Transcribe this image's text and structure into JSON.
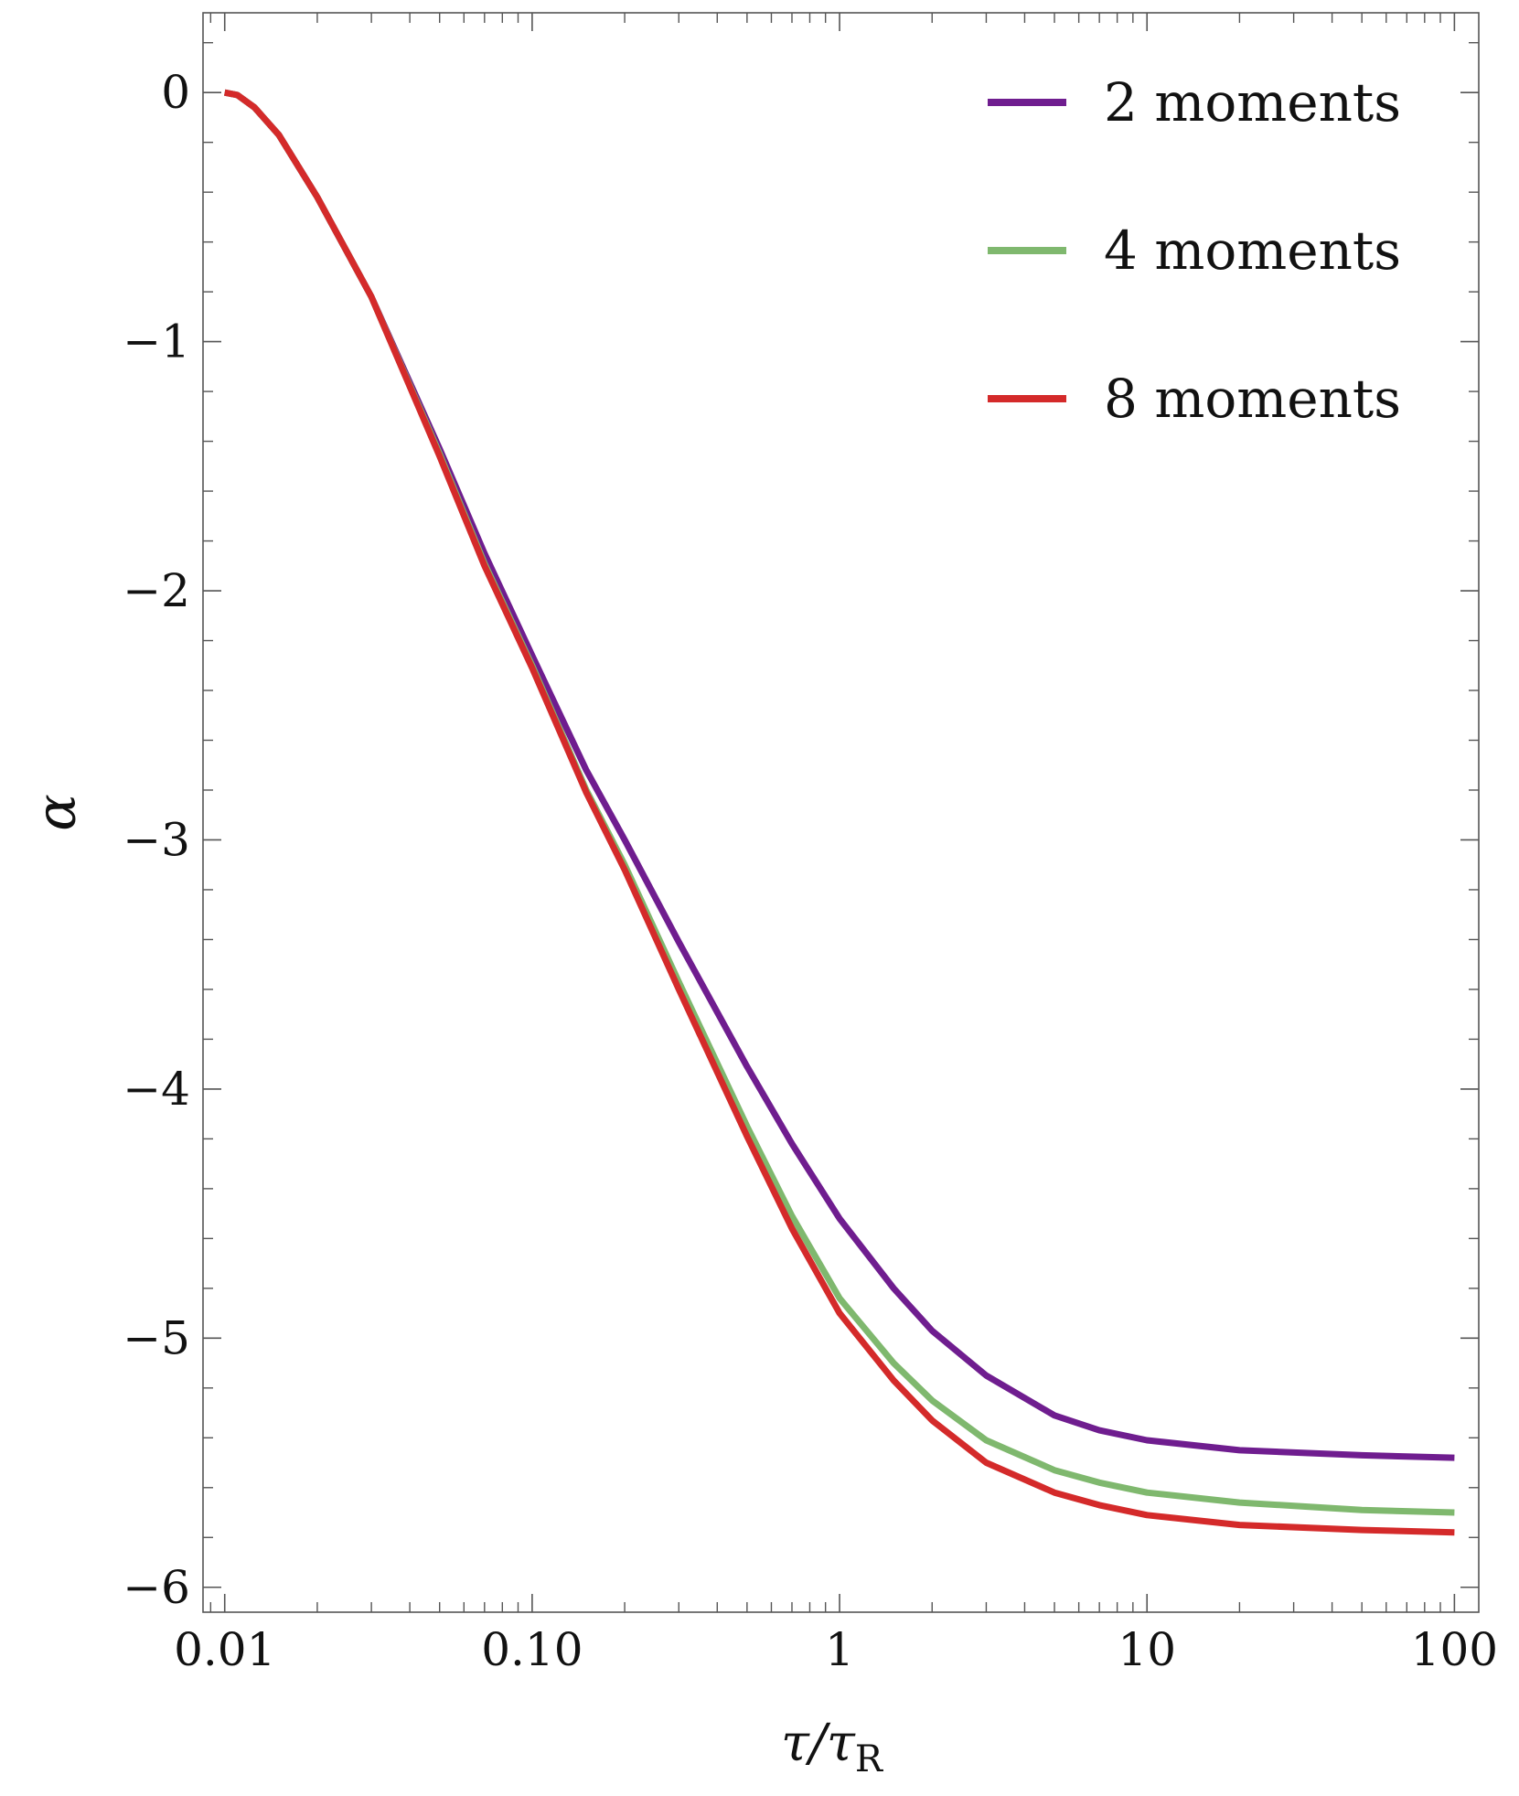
{
  "chart_data": {
    "type": "line",
    "xlabel": "τ/τ",
    "xlabel_sub": "R",
    "ylabel": "α",
    "x_scale": "log",
    "xlim": [
      0.0085,
      120
    ],
    "ylim": [
      -6.1,
      0.32
    ],
    "x_ticks": [
      {
        "value": 0.01,
        "label": "0.01"
      },
      {
        "value": 0.1,
        "label": "0.10"
      },
      {
        "value": 1,
        "label": "1"
      },
      {
        "value": 10,
        "label": "10"
      },
      {
        "value": 100,
        "label": "100"
      }
    ],
    "y_ticks": [
      {
        "value": 0,
        "label": "0"
      },
      {
        "value": -1,
        "label": "−1"
      },
      {
        "value": -2,
        "label": "−2"
      },
      {
        "value": -3,
        "label": "−3"
      },
      {
        "value": -4,
        "label": "−4"
      },
      {
        "value": -5,
        "label": "−5"
      },
      {
        "value": -6,
        "label": "−6"
      }
    ],
    "grid": false,
    "legend_position": "top-right",
    "series": [
      {
        "name": "2 moments",
        "color": "#6f1d8f",
        "x": [
          0.01,
          0.011,
          0.0125,
          0.015,
          0.02,
          0.03,
          0.05,
          0.07,
          0.1,
          0.15,
          0.2,
          0.3,
          0.5,
          0.7,
          1,
          1.5,
          2,
          3,
          5,
          7,
          10,
          20,
          50,
          100
        ],
        "y": [
          0,
          -0.01,
          -0.06,
          -0.17,
          -0.42,
          -0.82,
          -1.43,
          -1.85,
          -2.26,
          -2.72,
          -3.0,
          -3.41,
          -3.91,
          -4.22,
          -4.52,
          -4.8,
          -4.97,
          -5.15,
          -5.31,
          -5.37,
          -5.41,
          -5.45,
          -5.47,
          -5.48
        ]
      },
      {
        "name": "4 moments",
        "color": "#7fb86e",
        "x": [
          0.01,
          0.011,
          0.0125,
          0.015,
          0.02,
          0.03,
          0.05,
          0.07,
          0.1,
          0.15,
          0.2,
          0.3,
          0.5,
          0.7,
          1,
          1.5,
          2,
          3,
          5,
          7,
          10,
          20,
          50,
          100
        ],
        "y": [
          0,
          -0.01,
          -0.06,
          -0.17,
          -0.42,
          -0.82,
          -1.45,
          -1.89,
          -2.3,
          -2.8,
          -3.1,
          -3.57,
          -4.15,
          -4.51,
          -4.84,
          -5.1,
          -5.25,
          -5.41,
          -5.53,
          -5.58,
          -5.62,
          -5.66,
          -5.69,
          -5.7
        ]
      },
      {
        "name": "8 moments",
        "color": "#d42a2a",
        "x": [
          0.01,
          0.011,
          0.0125,
          0.015,
          0.02,
          0.03,
          0.05,
          0.07,
          0.1,
          0.15,
          0.2,
          0.3,
          0.5,
          0.7,
          1,
          1.5,
          2,
          3,
          5,
          7,
          10,
          20,
          50,
          100
        ],
        "y": [
          0,
          -0.01,
          -0.06,
          -0.17,
          -0.42,
          -0.82,
          -1.46,
          -1.9,
          -2.31,
          -2.81,
          -3.12,
          -3.6,
          -4.19,
          -4.56,
          -4.9,
          -5.17,
          -5.33,
          -5.5,
          -5.62,
          -5.67,
          -5.71,
          -5.75,
          -5.77,
          -5.78
        ]
      }
    ]
  }
}
